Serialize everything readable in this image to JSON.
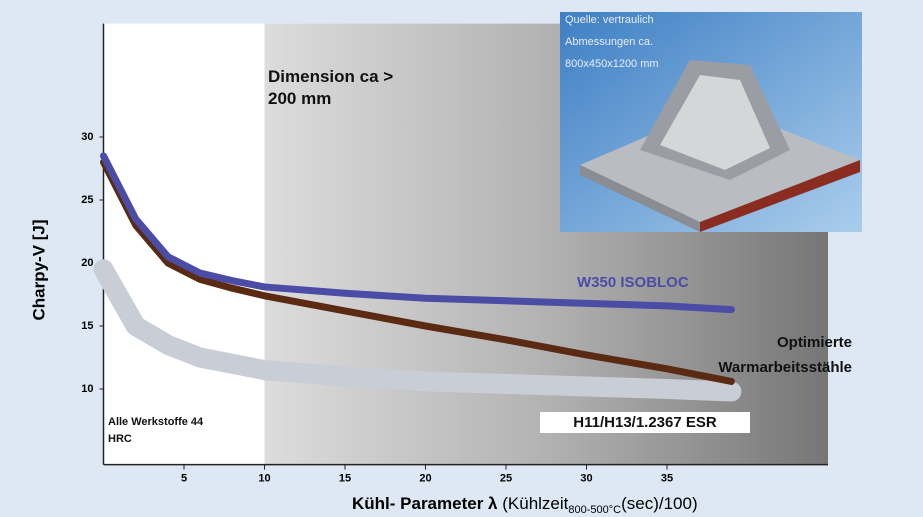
{
  "chart_data": {
    "type": "line",
    "x_label": {
      "main": "Kühl- Parameter λ",
      "rest": "(Kühlzeit",
      "sub": "800-500°C",
      "end": "(sec)/100)"
    },
    "y_label": "Charpy-V [J]",
    "x": [
      0,
      2,
      4,
      6,
      8,
      10,
      15,
      20,
      25,
      30,
      35,
      39
    ],
    "series": [
      {
        "name": "H11/H13/1.2367 ESR",
        "color": "#c8cdd6",
        "values": [
          19.5,
          15,
          13.5,
          12.5,
          12,
          11.5,
          11,
          10.6,
          10.4,
          10.2,
          10,
          9.8
        ]
      },
      {
        "name": "Optimierte Warmarbeitsstähle",
        "color": "#5a2a12",
        "values": [
          28,
          23,
          20,
          18.7,
          18,
          17.4,
          16.2,
          15,
          13.9,
          12.7,
          11.6,
          10.6
        ]
      },
      {
        "name": "W350 ISOBLOC",
        "color": "#4b4ca6",
        "values": [
          28.5,
          23.5,
          20.5,
          19.2,
          18.6,
          18.1,
          17.6,
          17.2,
          17,
          16.8,
          16.6,
          16.3
        ]
      }
    ],
    "xlim": [
      0,
      45
    ],
    "ylim": [
      4,
      39
    ],
    "xticks": [
      5,
      10,
      15,
      20,
      25,
      30,
      35
    ],
    "yticks": [
      10,
      15,
      20,
      25,
      30
    ],
    "annotations": {
      "dimension": "Dimension ca > 200 mm",
      "werkstoffe": "Alle Werkstoffe 44 HRC"
    },
    "inset": {
      "source": "Quelle: vertraulich",
      "dims": "Abmessungen ca.",
      "size": "800x450x1200 mm"
    }
  }
}
